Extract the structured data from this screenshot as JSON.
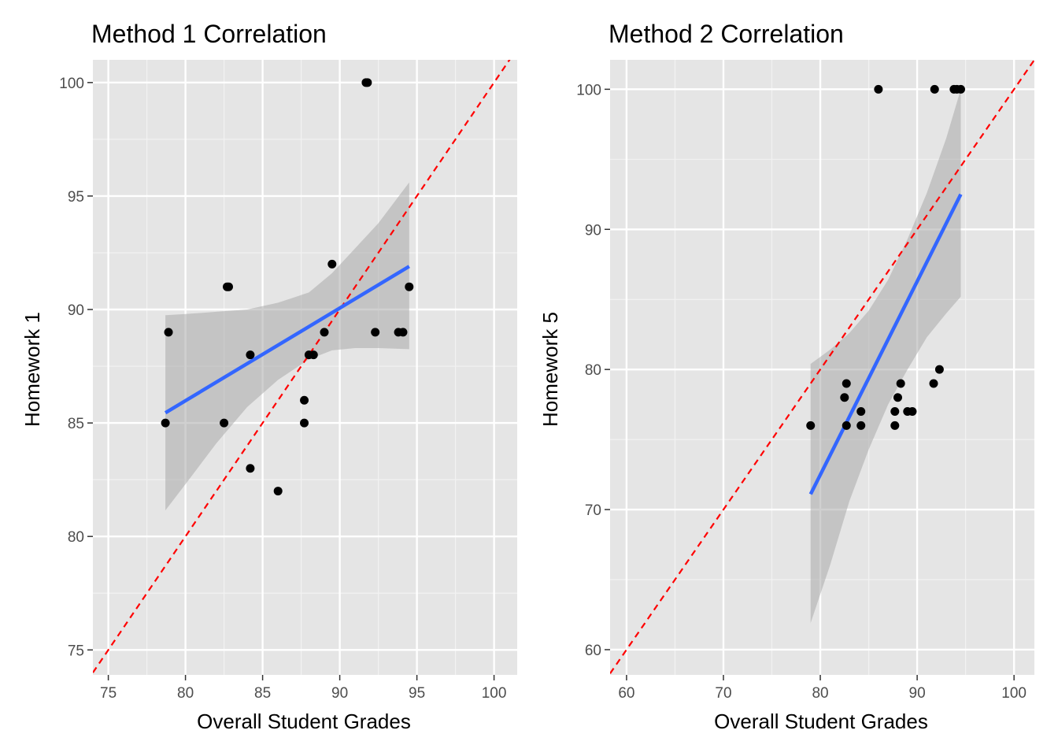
{
  "chart_data": [
    {
      "type": "scatter",
      "title": "Method 1 Correlation",
      "xlabel": "Overall Student Grades",
      "ylabel": "Homework 1",
      "xlim": [
        74,
        101.5
      ],
      "ylim": [
        73.9,
        101
      ],
      "xticks": [
        75,
        80,
        85,
        90,
        95,
        100
      ],
      "yticks": [
        75,
        80,
        85,
        90,
        95,
        100
      ],
      "grid": true,
      "background": "#e5e5e5",
      "point_color": "#000000",
      "fit_color": "#3366ff",
      "band_color": "#a9a9a9",
      "reference_color": "#ff0000",
      "points": [
        [
          78.7,
          85
        ],
        [
          78.9,
          89
        ],
        [
          82.5,
          85
        ],
        [
          82.7,
          91
        ],
        [
          82.8,
          91
        ],
        [
          84.2,
          88
        ],
        [
          84.2,
          83
        ],
        [
          86.0,
          82
        ],
        [
          87.7,
          86
        ],
        [
          87.7,
          85
        ],
        [
          88.0,
          88
        ],
        [
          88.3,
          88
        ],
        [
          89.0,
          89
        ],
        [
          89.5,
          92
        ],
        [
          91.7,
          100
        ],
        [
          91.8,
          100
        ],
        [
          92.3,
          89
        ],
        [
          93.8,
          89
        ],
        [
          94.1,
          89
        ],
        [
          94.5,
          91
        ]
      ],
      "fit_line": {
        "x": [
          78.7,
          94.5
        ],
        "y": [
          85.45,
          91.9
        ]
      },
      "confidence_band": {
        "x": [
          78.7,
          80,
          82,
          84,
          86,
          88,
          89.5,
          91,
          92.5,
          94.5
        ],
        "upper": [
          89.75,
          89.8,
          89.9,
          90.0,
          90.3,
          90.75,
          91.6,
          92.7,
          93.8,
          95.6
        ],
        "lower": [
          81.15,
          82.3,
          84.1,
          85.7,
          86.9,
          87.8,
          88.2,
          88.3,
          88.3,
          88.25
        ]
      },
      "reference_line": {
        "x": [
          74,
          101.5
        ],
        "y": [
          74,
          101.5
        ],
        "style": "dashed"
      }
    },
    {
      "type": "scatter",
      "title": "Method 2 Correlation",
      "xlabel": "Overall Student Grades",
      "ylabel": "Homework 5",
      "xlim": [
        58.3,
        102.1
      ],
      "ylim": [
        58.2,
        102.1
      ],
      "xticks": [
        60,
        70,
        80,
        90,
        100
      ],
      "yticks": [
        60,
        70,
        80,
        90,
        100
      ],
      "grid": true,
      "background": "#e5e5e5",
      "point_color": "#000000",
      "fit_color": "#3366ff",
      "band_color": "#a9a9a9",
      "reference_color": "#ff0000",
      "points": [
        [
          79.0,
          76
        ],
        [
          82.5,
          78
        ],
        [
          82.7,
          79
        ],
        [
          82.7,
          76
        ],
        [
          84.2,
          77
        ],
        [
          84.2,
          76
        ],
        [
          86.0,
          100
        ],
        [
          87.7,
          77
        ],
        [
          87.7,
          76
        ],
        [
          88.0,
          78
        ],
        [
          88.3,
          79
        ],
        [
          89.0,
          77
        ],
        [
          89.5,
          77
        ],
        [
          91.7,
          79
        ],
        [
          91.8,
          100
        ],
        [
          92.3,
          80
        ],
        [
          93.8,
          100
        ],
        [
          94.1,
          100
        ],
        [
          94.5,
          100
        ]
      ],
      "fit_line": {
        "x": [
          79.0,
          94.5
        ],
        "y": [
          71.1,
          92.5
        ]
      },
      "confidence_band": {
        "x": [
          79.0,
          81,
          83,
          85,
          87,
          89,
          91,
          93,
          94.5
        ],
        "upper": [
          80.4,
          81.4,
          82.6,
          84.2,
          86.4,
          89.3,
          92.6,
          96.5,
          100.0
        ],
        "lower": [
          61.9,
          66.0,
          70.6,
          74.3,
          77.5,
          80.0,
          82.3,
          84.0,
          85.2
        ]
      },
      "reference_line": {
        "x": [
          58.3,
          102.1
        ],
        "y": [
          58.3,
          102.1
        ],
        "style": "dashed"
      }
    }
  ]
}
